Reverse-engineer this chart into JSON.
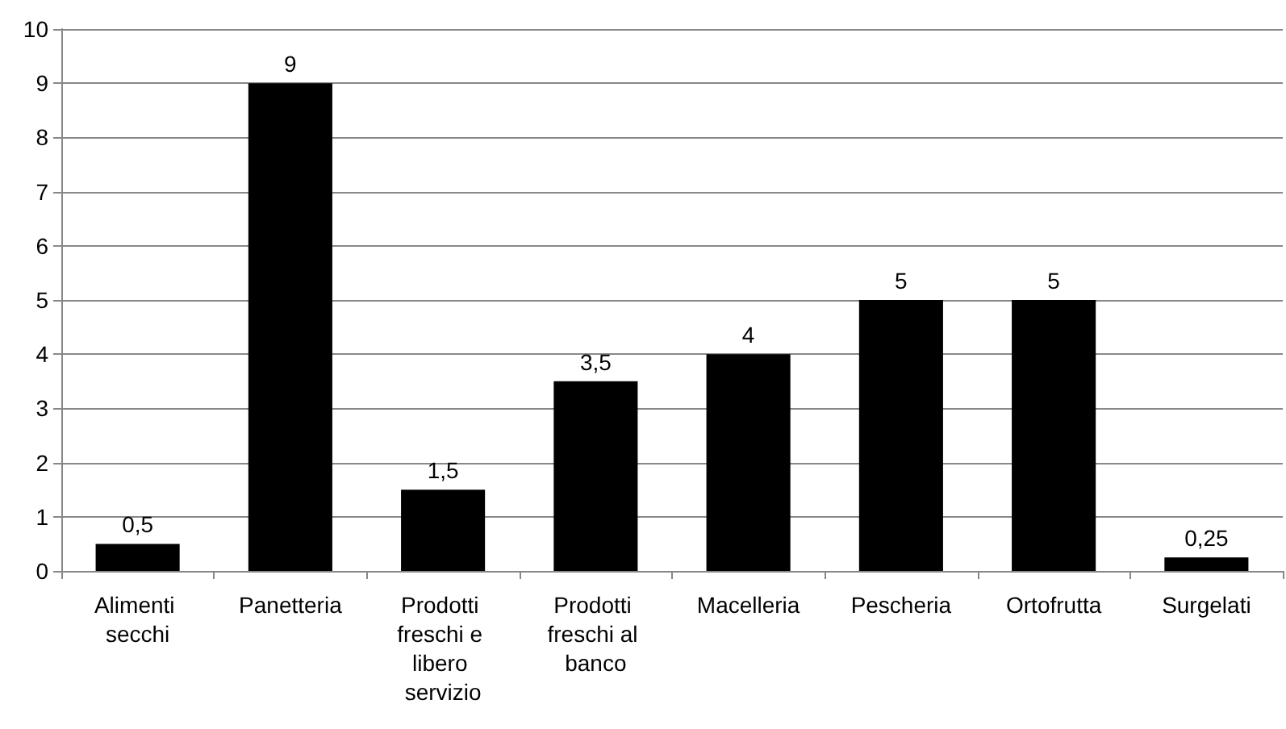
{
  "chart_data": {
    "type": "bar",
    "categories": [
      "Alimenti secchi",
      "Panetteria",
      "Prodotti freschi e libero servizio",
      "Prodotti freschi al banco",
      "Macelleria",
      "Pescheria",
      "Ortofrutta",
      "Surgelati"
    ],
    "values": [
      0.5,
      9,
      1.5,
      3.5,
      4,
      5,
      5,
      0.25
    ],
    "value_labels": [
      "0,5",
      "9",
      "1,5",
      "3,5",
      "4",
      "5",
      "5",
      "0,25"
    ],
    "color": "#000000",
    "ylim": [
      0,
      10
    ],
    "yticks": [
      0,
      1,
      2,
      3,
      4,
      5,
      6,
      7,
      8,
      9,
      10
    ],
    "grid": "y"
  }
}
